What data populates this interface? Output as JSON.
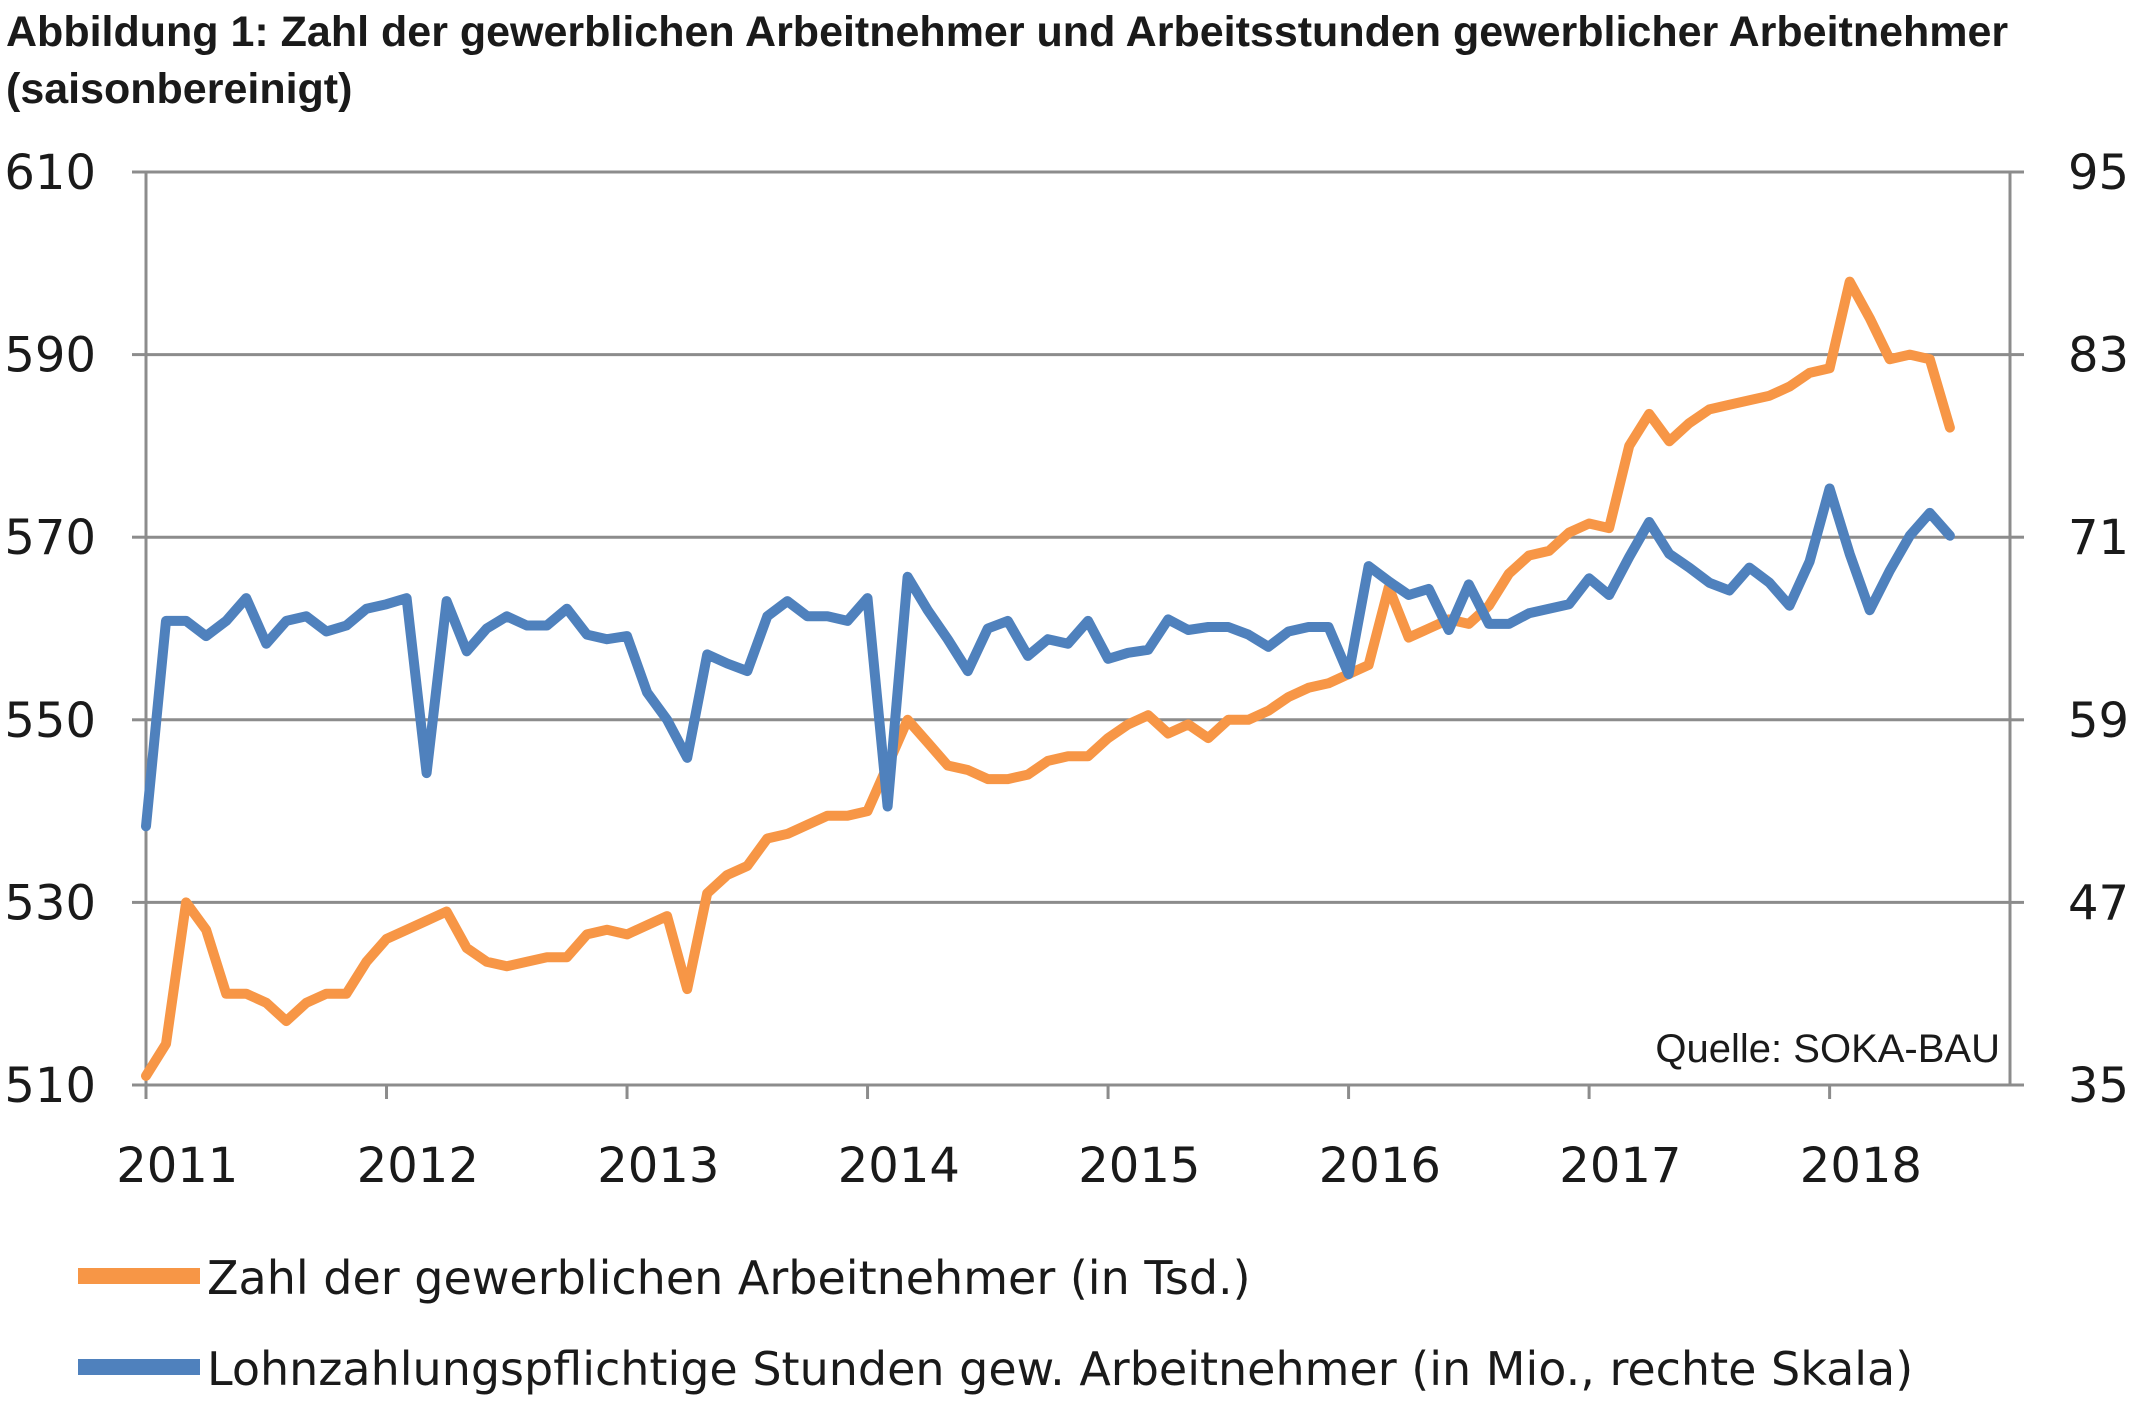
{
  "chart_data": {
    "type": "line",
    "title": "Abbildung 1: Zahl der gewerblichen Arbeitnehmer und Arbeitsstunden gewerblicher Arbeitnehmer (saisonbereinigt)",
    "source": "Quelle: SOKA-BAU",
    "x_tick_labels": [
      "2011",
      "2012",
      "2013",
      "2014",
      "2015",
      "2016",
      "2017",
      "2018"
    ],
    "xlim": [
      2011,
      2018.75
    ],
    "y_left": {
      "ticks": [
        "510",
        "530",
        "550",
        "570",
        "590",
        "610"
      ],
      "ylim": [
        510,
        610
      ]
    },
    "y_right": {
      "ticks": [
        "35",
        "47",
        "59",
        "71",
        "83",
        "95"
      ],
      "ylim": [
        35,
        95
      ]
    },
    "grid": true,
    "legend_position": "bottom",
    "series": [
      {
        "name": "Zahl der gewerblichen Arbeitnehmer (in Tsd.)",
        "axis": "left",
        "color": "#F79646",
        "start": "2011-01",
        "frequency": "monthly",
        "values": [
          511,
          514.5,
          530,
          527,
          520,
          520,
          519,
          517,
          519,
          520,
          520,
          523.5,
          526,
          527,
          528,
          529,
          525,
          523.5,
          523,
          523.5,
          524,
          524,
          526.5,
          527,
          526.5,
          527.5,
          528.5,
          520.5,
          531,
          533,
          534,
          537,
          537.5,
          538.5,
          539.5,
          539.5,
          540,
          545,
          550,
          547.5,
          545,
          544.5,
          543.5,
          543.5,
          544,
          545.5,
          546,
          546,
          548,
          549.5,
          550.5,
          548.5,
          549.5,
          548,
          550,
          550,
          551,
          552.5,
          553.5,
          554,
          555,
          556,
          564.5,
          559,
          560,
          561,
          560.5,
          562.5,
          566,
          568,
          568.5,
          570.5,
          571.5,
          571,
          580,
          583.5,
          580.5,
          582.5,
          584,
          584.5,
          585,
          585.5,
          586.5,
          588,
          588.5,
          598,
          594,
          589.5,
          590,
          589.5,
          582
        ]
      },
      {
        "name": "Lohnzahlungspflichtige Stunden gew. Arbeitnehmer (in Mio., rechte Skala)",
        "axis": "right",
        "color": "#4F81BD",
        "start": "2011-01",
        "frequency": "monthly",
        "values": [
          52,
          65.5,
          65.5,
          64.5,
          65.5,
          67,
          64,
          65.5,
          65.8,
          64.8,
          65.2,
          66.3,
          66.6,
          67,
          55.5,
          66.8,
          63.5,
          65,
          65.8,
          65.2,
          65.2,
          66.3,
          64.6,
          64.3,
          64.5,
          60.8,
          59,
          56.5,
          63.3,
          62.7,
          62.2,
          65.8,
          66.8,
          65.8,
          65.8,
          65.5,
          67,
          53.3,
          68.4,
          66.2,
          64.3,
          62.2,
          65,
          65.5,
          63.2,
          64.3,
          64,
          65.5,
          63,
          63.4,
          63.6,
          65.6,
          64.9,
          65.1,
          65.1,
          64.6,
          63.8,
          64.8,
          65.1,
          65.1,
          62,
          69.1,
          68.1,
          67.2,
          67.6,
          64.9,
          67.9,
          65.3,
          65.3,
          66,
          66.3,
          66.6,
          68.3,
          67.2,
          69.7,
          72,
          69.9,
          69,
          68,
          67.5,
          69,
          68,
          66.5,
          69.4,
          74.2,
          69.9,
          66.2,
          68.8,
          71.1,
          72.6,
          71.1
        ]
      }
    ]
  }
}
